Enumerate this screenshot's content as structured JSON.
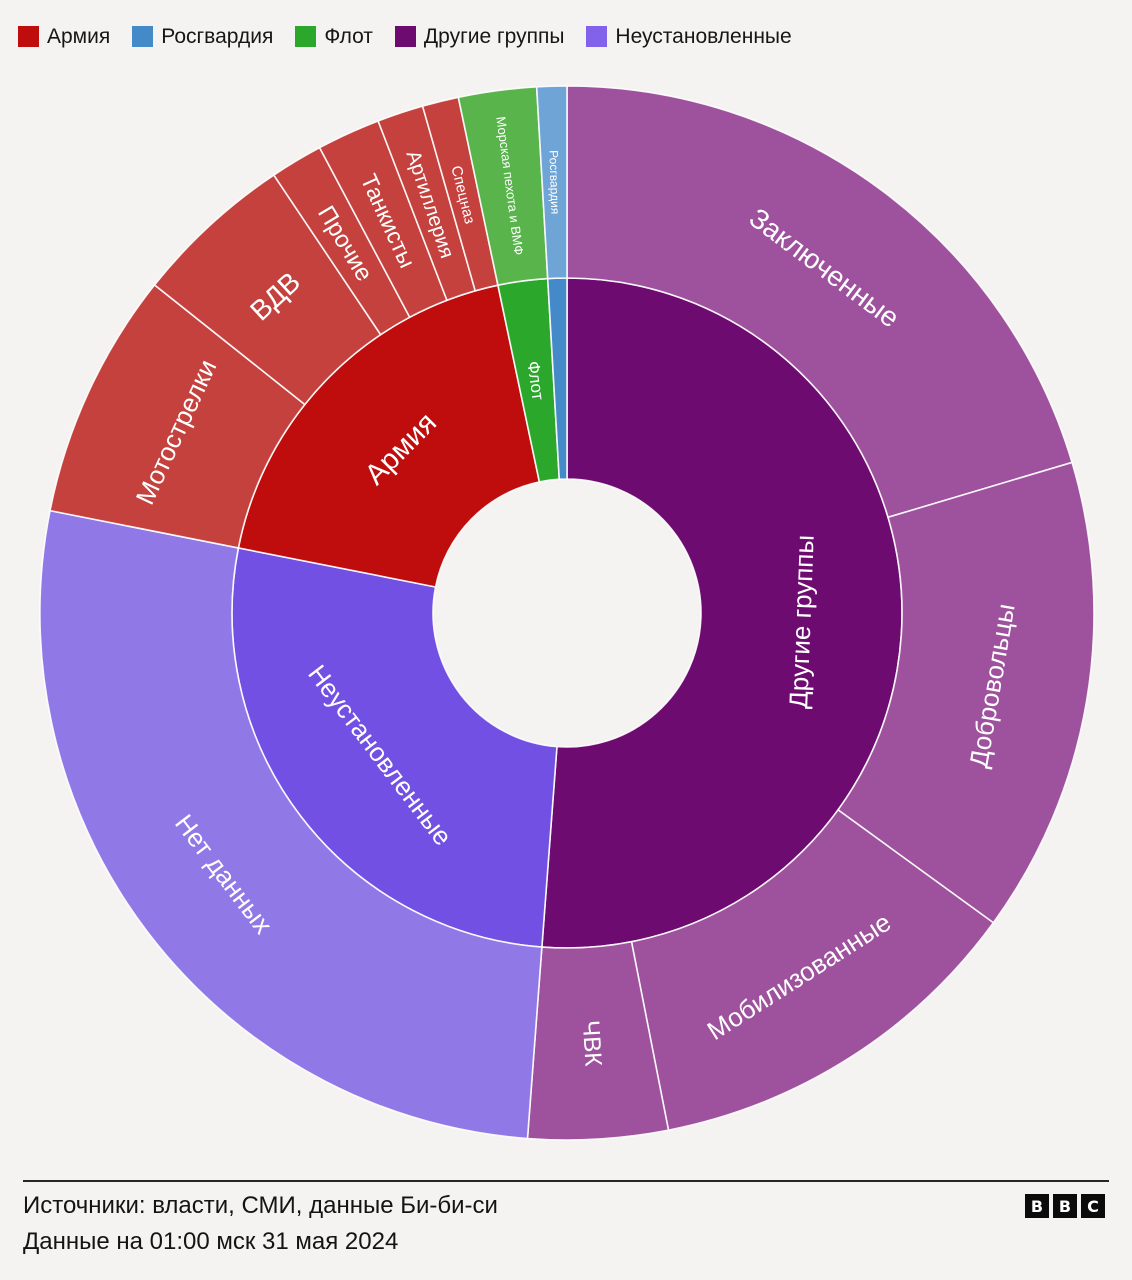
{
  "legend": {
    "position": "top-left",
    "items": [
      {
        "label": "Армия",
        "color": "#bf0c0c"
      },
      {
        "label": "Росгвардия",
        "color": "#4489c8"
      },
      {
        "label": "Флот",
        "color": "#2ba82b"
      },
      {
        "label": "Другие группы",
        "color": "#6d0b70"
      },
      {
        "label": "Неустановленные",
        "color": "#8262ea"
      }
    ]
  },
  "chart_data": {
    "type": "sunburst",
    "angle_unit": "degrees clockwise from 12 o'clock",
    "background": "#f4f3f1",
    "label_color": "#ffffff",
    "legend_position": "top-left",
    "rings": [
      "inner: группы",
      "outer: подгруппы"
    ],
    "categories": [
      {
        "name": "Другие группы",
        "color": "#6d0b70",
        "start_deg": 0,
        "end_deg": 184.3,
        "share_pct": 51.2,
        "label": {
          "orientation": "tangential",
          "font_px": 26
        },
        "children": [
          {
            "name": "Заключенные",
            "color": "#9e519d",
            "start_deg": 0,
            "end_deg": 73.4,
            "share_pct": 20.4,
            "label": {
              "orientation": "tangential",
              "font_px": 28
            }
          },
          {
            "name": "Добровольцы",
            "color": "#9e519d",
            "start_deg": 73.4,
            "end_deg": 126.0,
            "share_pct": 14.6,
            "label": {
              "orientation": "tangential",
              "font_px": 26
            }
          },
          {
            "name": "Мобилизованные",
            "color": "#9e519d",
            "start_deg": 126.0,
            "end_deg": 168.9,
            "share_pct": 11.9,
            "label": {
              "orientation": "tangential",
              "font_px": 26
            }
          },
          {
            "name": "ЧВК",
            "color": "#9e519d",
            "start_deg": 168.9,
            "end_deg": 184.3,
            "share_pct": 4.3,
            "label": {
              "orientation": "radial",
              "font_px": 24
            }
          }
        ]
      },
      {
        "name": "Неустановленные",
        "color": "#7150e3",
        "start_deg": 184.3,
        "end_deg": 281.2,
        "share_pct": 26.9,
        "label": {
          "orientation": "tangential",
          "font_px": 26
        },
        "children": [
          {
            "name": "Нет данных",
            "color": "#9178e7",
            "start_deg": 184.3,
            "end_deg": 281.2,
            "share_pct": 26.9,
            "label": {
              "orientation": "tangential",
              "font_px": 26
            }
          }
        ]
      },
      {
        "name": "Армия",
        "color": "#bf0c0c",
        "start_deg": 281.2,
        "end_deg": 348.1,
        "share_pct": 18.6,
        "label": {
          "orientation": "tangential",
          "font_px": 29
        },
        "children": [
          {
            "name": "Мотострелки",
            "color": "#c5413e",
            "start_deg": 281.2,
            "end_deg": 308.5,
            "share_pct": 7.6,
            "label": {
              "orientation": "tangential",
              "font_px": 26
            }
          },
          {
            "name": "ВДВ",
            "color": "#c5413e",
            "start_deg": 308.5,
            "end_deg": 326.2,
            "share_pct": 4.9,
            "label": {
              "orientation": "tangential",
              "font_px": 28
            }
          },
          {
            "name": "Прочие",
            "color": "#c5413e",
            "start_deg": 326.2,
            "end_deg": 332.0,
            "share_pct": 1.6,
            "label": {
              "orientation": "radial",
              "font_px": 24
            }
          },
          {
            "name": "Танкисты",
            "color": "#c5413e",
            "start_deg": 332.0,
            "end_deg": 339.0,
            "share_pct": 1.9,
            "label": {
              "orientation": "radial",
              "font_px": 23
            }
          },
          {
            "name": "Артиллерия",
            "color": "#c5413e",
            "start_deg": 339.0,
            "end_deg": 344.1,
            "share_pct": 1.4,
            "label": {
              "orientation": "radial",
              "font_px": 20
            }
          },
          {
            "name": "Спецназ",
            "color": "#c5413e",
            "start_deg": 344.1,
            "end_deg": 348.1,
            "share_pct": 1.1,
            "label": {
              "orientation": "radial",
              "font_px": 15
            }
          }
        ]
      },
      {
        "name": "Флот",
        "color": "#2ba82b",
        "start_deg": 348.1,
        "end_deg": 356.7,
        "share_pct": 2.4,
        "label": {
          "orientation": "radial",
          "font_px": 17
        },
        "children": [
          {
            "name": "Морская пехота и ВМФ",
            "color": "#58b44b",
            "start_deg": 348.1,
            "end_deg": 356.7,
            "share_pct": 2.4,
            "label": {
              "orientation": "radial",
              "font_px": 13
            }
          }
        ]
      },
      {
        "name": "Росгвардия",
        "color": "#4489c8",
        "start_deg": 356.7,
        "end_deg": 360,
        "share_pct": 0.9,
        "label": null,
        "children": [
          {
            "name": "Росгвардия",
            "color": "#6fa4d6",
            "start_deg": 356.7,
            "end_deg": 360,
            "share_pct": 0.9,
            "label": {
              "orientation": "radial",
              "font_px": 12
            }
          }
        ]
      }
    ]
  },
  "footer": {
    "source": "Источники: власти, СМИ, данные Би-би-си",
    "date": "Данные на 01:00 мск 31 мая 2024",
    "logo_letters": [
      "B",
      "B",
      "C"
    ]
  }
}
